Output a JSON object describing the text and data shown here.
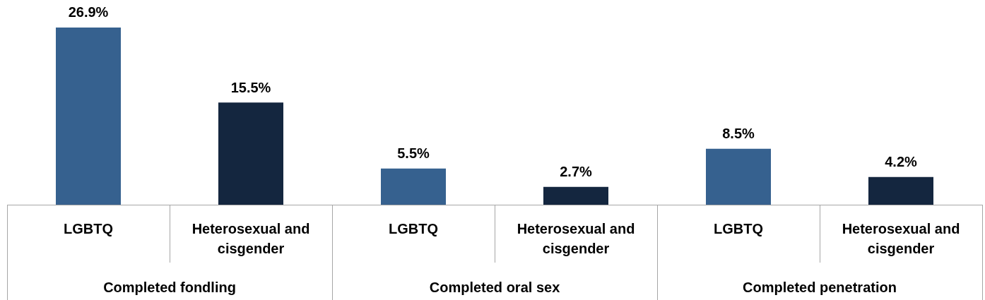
{
  "chart_data": {
    "type": "bar",
    "categories": [
      "Completed fondling",
      "Completed oral sex",
      "Completed penetration"
    ],
    "series": [
      {
        "name": "LGBTQ",
        "color": "#36618f",
        "values": [
          26.9,
          5.5,
          8.5
        ],
        "value_labels": [
          "26.9%",
          "5.5%",
          "8.5%"
        ]
      },
      {
        "name": "Heterosexual and cisgender",
        "color": "#14263f",
        "values": [
          15.5,
          2.7,
          4.2
        ],
        "value_labels": [
          "15.5%",
          "2.7%",
          "4.2%"
        ]
      }
    ],
    "legend": false
  }
}
